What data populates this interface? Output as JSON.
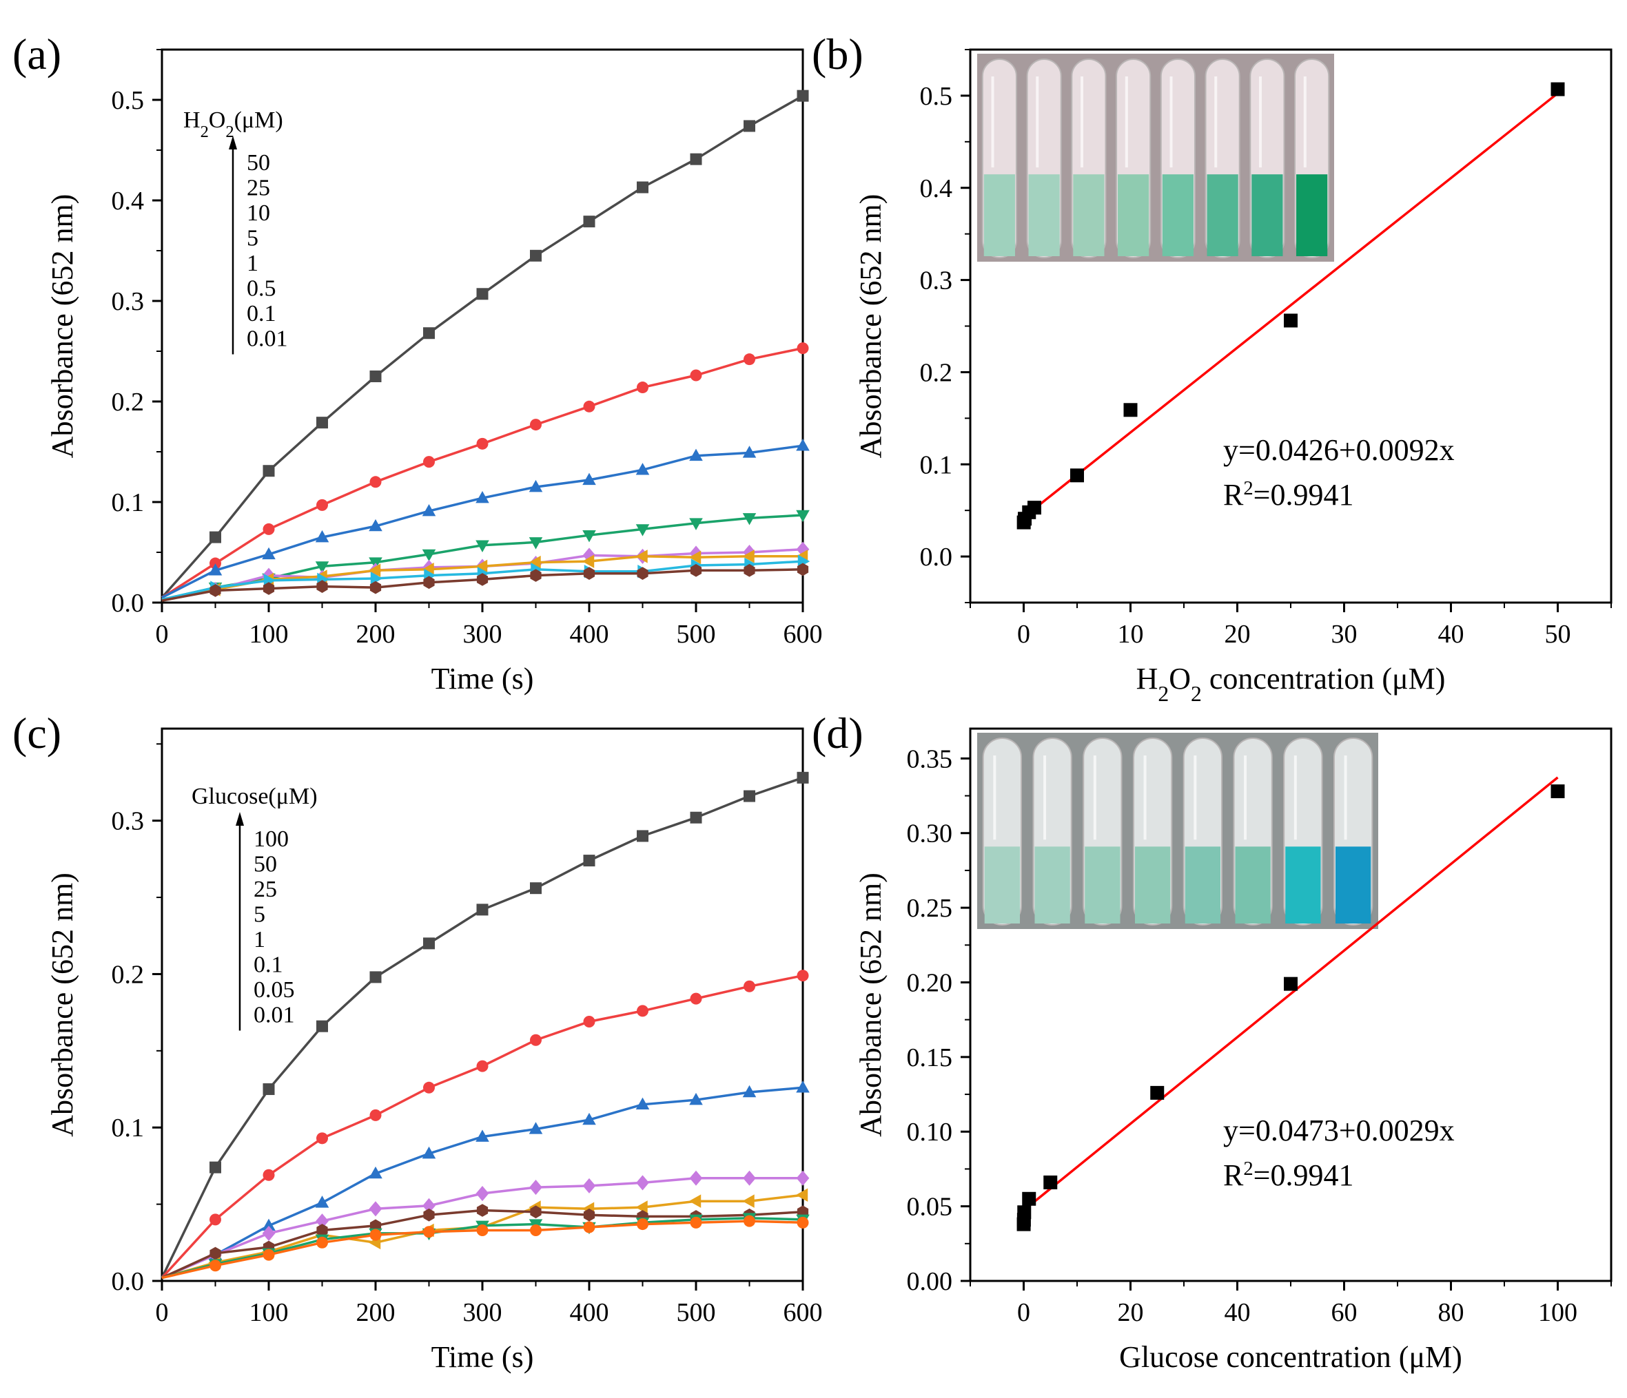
{
  "chart_data": [
    {
      "id": "a",
      "type": "line",
      "panel_label": "(a)",
      "xlabel": "Time (s)",
      "ylabel": "Absorbance (652 nm)",
      "xlim": [
        0,
        600
      ],
      "ylim": [
        0,
        0.55
      ],
      "xticks": [
        "0",
        "100",
        "200",
        "300",
        "400",
        "500",
        "600"
      ],
      "yticks": [
        "0.0",
        "0.1",
        "0.2",
        "0.3",
        "0.4",
        "0.5"
      ],
      "legend": {
        "title": "H2O2(μM)",
        "entries": [
          "50",
          "25",
          "10",
          "5",
          "1",
          "0.5",
          "0.1",
          "0.01"
        ]
      },
      "x": [
        0,
        50,
        100,
        150,
        200,
        250,
        300,
        350,
        400,
        450,
        500,
        550,
        600
      ],
      "series": [
        {
          "name": "50",
          "color": "#4a4a4a",
          "marker": "square",
          "values": [
            0.005,
            0.065,
            0.131,
            0.179,
            0.225,
            0.268,
            0.307,
            0.345,
            0.379,
            0.413,
            0.441,
            0.474,
            0.504
          ]
        },
        {
          "name": "25",
          "color": "#f04040",
          "marker": "circle",
          "values": [
            0.005,
            0.039,
            0.073,
            0.097,
            0.12,
            0.14,
            0.158,
            0.177,
            0.195,
            0.214,
            0.226,
            0.242,
            0.253
          ]
        },
        {
          "name": "10",
          "color": "#2a73c8",
          "marker": "triangle-up",
          "values": [
            0.005,
            0.032,
            0.048,
            0.065,
            0.076,
            0.091,
            0.104,
            0.115,
            0.122,
            0.132,
            0.146,
            0.149,
            0.156
          ]
        },
        {
          "name": "5",
          "color": "#1aa36a",
          "marker": "triangle-down",
          "values": [
            0.003,
            0.015,
            0.024,
            0.036,
            0.04,
            0.048,
            0.057,
            0.06,
            0.067,
            0.073,
            0.079,
            0.084,
            0.087
          ]
        },
        {
          "name": "1",
          "color": "#c77ae0",
          "marker": "diamond",
          "values": [
            0.003,
            0.013,
            0.027,
            0.025,
            0.032,
            0.035,
            0.036,
            0.039,
            0.047,
            0.046,
            0.049,
            0.05,
            0.053
          ]
        },
        {
          "name": "0.5",
          "color": "#e6a11a",
          "marker": "triangle-left",
          "values": [
            0.003,
            0.013,
            0.023,
            0.026,
            0.032,
            0.033,
            0.036,
            0.04,
            0.041,
            0.046,
            0.045,
            0.046,
            0.046
          ]
        },
        {
          "name": "0.1",
          "color": "#27b9e0",
          "marker": "triangle-right",
          "values": [
            0.003,
            0.015,
            0.022,
            0.023,
            0.024,
            0.027,
            0.029,
            0.033,
            0.031,
            0.031,
            0.037,
            0.038,
            0.041
          ]
        },
        {
          "name": "0.01",
          "color": "#7a3b2e",
          "marker": "hexagon",
          "values": [
            0.002,
            0.012,
            0.014,
            0.016,
            0.015,
            0.02,
            0.023,
            0.027,
            0.029,
            0.029,
            0.032,
            0.032,
            0.033
          ]
        }
      ]
    },
    {
      "id": "b",
      "type": "scatter",
      "panel_label": "(b)",
      "xlabel": "H2O2 concentration (μM)",
      "ylabel": "Absorbance (652 nm)",
      "xlim": [
        -5,
        55
      ],
      "ylim": [
        -0.05,
        0.55
      ],
      "xticks": [
        "0",
        "10",
        "20",
        "30",
        "40",
        "50"
      ],
      "yticks": [
        "0.0",
        "0.1",
        "0.2",
        "0.3",
        "0.4",
        "0.5"
      ],
      "points": {
        "x": [
          0.01,
          0.1,
          0.5,
          1,
          5,
          10,
          25,
          50
        ],
        "y": [
          0.037,
          0.041,
          0.048,
          0.053,
          0.088,
          0.159,
          0.256,
          0.507
        ]
      },
      "fit": {
        "intercept": 0.0426,
        "slope": 0.0092,
        "x_range": [
          0,
          50
        ],
        "color": "#ff0000"
      },
      "equation": "y=0.0426+0.0092x",
      "r2_prefix": "R",
      "r2_sup": "2",
      "r2_value": "=0.9941",
      "inset": {
        "tubes": 8,
        "liquid_colors": [
          "#9fd1bd",
          "#a3d2bf",
          "#9ecfb9",
          "#8fcbb0",
          "#6fc3a5",
          "#52b694",
          "#38ac86",
          "#0f9a62"
        ]
      }
    },
    {
      "id": "c",
      "type": "line",
      "panel_label": "(c)",
      "xlabel": "Time (s)",
      "ylabel": "Absorbance (652 nm)",
      "xlim": [
        0,
        600
      ],
      "ylim": [
        0,
        0.36
      ],
      "xticks": [
        "0",
        "100",
        "200",
        "300",
        "400",
        "500",
        "600"
      ],
      "yticks": [
        "0.0",
        "0.1",
        "0.2",
        "0.3"
      ],
      "legend": {
        "title": "Glucose(μM)",
        "entries": [
          "100",
          "50",
          "25",
          "5",
          "1",
          "0.1",
          "0.05",
          "0.01"
        ]
      },
      "x": [
        0,
        50,
        100,
        150,
        200,
        250,
        300,
        350,
        400,
        450,
        500,
        550,
        600
      ],
      "series": [
        {
          "name": "100",
          "color": "#4a4a4a",
          "marker": "square",
          "values": [
            0.002,
            0.074,
            0.125,
            0.166,
            0.198,
            0.22,
            0.242,
            0.256,
            0.274,
            0.29,
            0.302,
            0.316,
            0.328
          ]
        },
        {
          "name": "50",
          "color": "#f04040",
          "marker": "circle",
          "values": [
            0.002,
            0.04,
            0.069,
            0.093,
            0.108,
            0.126,
            0.14,
            0.157,
            0.169,
            0.176,
            0.184,
            0.192,
            0.199
          ]
        },
        {
          "name": "25",
          "color": "#2a73c8",
          "marker": "triangle-up",
          "values": [
            0.002,
            0.017,
            0.036,
            0.051,
            0.07,
            0.083,
            0.094,
            0.099,
            0.105,
            0.115,
            0.118,
            0.123,
            0.126
          ]
        },
        {
          "name": "5",
          "color": "#c77ae0",
          "marker": "diamond",
          "values": [
            0.002,
            0.017,
            0.031,
            0.039,
            0.047,
            0.049,
            0.057,
            0.061,
            0.062,
            0.064,
            0.067,
            0.067,
            0.067
          ]
        },
        {
          "name": "1",
          "color": "#e6a11a",
          "marker": "triangle-left",
          "values": [
            0.002,
            0.012,
            0.019,
            0.03,
            0.025,
            0.033,
            0.035,
            0.048,
            0.047,
            0.048,
            0.052,
            0.052,
            0.056
          ]
        },
        {
          "name": "0.1",
          "color": "#7a3b2e",
          "marker": "hexagon",
          "values": [
            0.002,
            0.018,
            0.022,
            0.033,
            0.036,
            0.043,
            0.046,
            0.045,
            0.043,
            0.042,
            0.042,
            0.043,
            0.045
          ]
        },
        {
          "name": "0.05",
          "color": "#1aa36a",
          "marker": "triangle-down",
          "values": [
            0.002,
            0.011,
            0.018,
            0.027,
            0.031,
            0.031,
            0.036,
            0.037,
            0.035,
            0.038,
            0.04,
            0.041,
            0.04
          ]
        },
        {
          "name": "0.01",
          "color": "#ff6a10",
          "marker": "circle",
          "values": [
            0.002,
            0.01,
            0.017,
            0.025,
            0.03,
            0.032,
            0.033,
            0.033,
            0.035,
            0.037,
            0.038,
            0.039,
            0.038
          ]
        }
      ]
    },
    {
      "id": "d",
      "type": "scatter",
      "panel_label": "(d)",
      "xlabel": "Glucose concentration (μM)",
      "ylabel": "Absorbance (652 nm)",
      "xlim": [
        -10,
        110
      ],
      "ylim": [
        0,
        0.37
      ],
      "xticks": [
        "0",
        "20",
        "40",
        "60",
        "80",
        "100"
      ],
      "yticks": [
        "0.00",
        "0.05",
        "0.10",
        "0.15",
        "0.20",
        "0.25",
        "0.30",
        "0.35"
      ],
      "points": {
        "x": [
          0.01,
          0.05,
          0.1,
          1,
          5,
          25,
          50,
          100
        ],
        "y": [
          0.038,
          0.041,
          0.046,
          0.055,
          0.066,
          0.126,
          0.199,
          0.328
        ]
      },
      "fit": {
        "intercept": 0.0473,
        "slope": 0.0029,
        "x_range": [
          0,
          100
        ],
        "color": "#ff0000"
      },
      "equation": "y=0.0473+0.0029x",
      "r2_prefix": "R",
      "r2_sup": "2",
      "r2_value": "=0.9941",
      "inset": {
        "tubes": 8,
        "liquid_colors": [
          "#a6d2c3",
          "#a0d0c0",
          "#98cdbb",
          "#8fcab6",
          "#7fc5b3",
          "#78c2ad",
          "#22b8c0",
          "#1597c5"
        ]
      }
    }
  ]
}
